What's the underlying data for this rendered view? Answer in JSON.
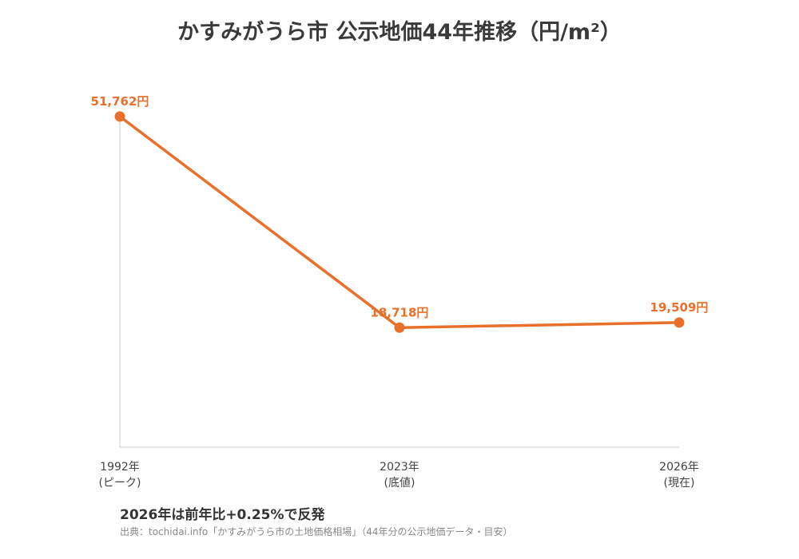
{
  "chart_data": {
    "type": "line",
    "title": "かすみがうら市 公示地価44年推移（円/m²）",
    "categories": [
      "1992年\n(ピーク)",
      "2023年\n(底値)",
      "2026年\n(現在)"
    ],
    "series": [
      {
        "values": [
          51762,
          18718,
          19509
        ],
        "data_labels": [
          "51,762円",
          "18,718円",
          "19,509円"
        ]
      }
    ],
    "ylim": [
      0,
      55000
    ],
    "grid": false,
    "color": "#e8702a"
  },
  "footer": {
    "summary": "2026年は前年比+0.25%で反発",
    "source": "出典：tochidai.info「かすみがうら市の土地価格相場」（44年分の公示地価データ・目安）"
  },
  "colors": {
    "line": "#e8702a",
    "axis": "#cccccc"
  }
}
